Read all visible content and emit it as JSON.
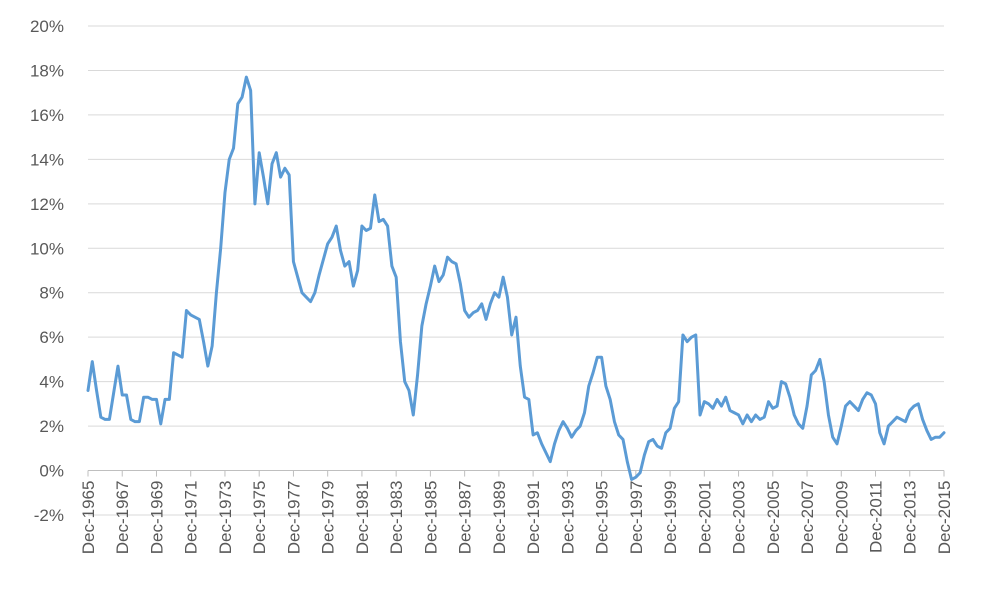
{
  "chart_data": {
    "type": "line",
    "title": "",
    "xlabel": "",
    "ylabel": "",
    "ylim": [
      -0.02,
      0.2
    ],
    "y_ticks": [
      "-2%",
      "0%",
      "2%",
      "4%",
      "6%",
      "8%",
      "10%",
      "12%",
      "14%",
      "16%",
      "18%",
      "20%"
    ],
    "y_tick_values": [
      -0.02,
      0,
      0.02,
      0.04,
      0.06,
      0.08,
      0.1,
      0.12,
      0.14,
      0.16,
      0.18,
      0.2
    ],
    "x_ticks": [
      "Dec-1965",
      "Dec-1967",
      "Dec-1969",
      "Dec-1971",
      "Dec-1973",
      "Dec-1975",
      "Dec-1977",
      "Dec-1979",
      "Dec-1981",
      "Dec-1983",
      "Dec-1985",
      "Dec-1987",
      "Dec-1989",
      "Dec-1991",
      "Dec-1993",
      "Dec-1995",
      "Dec-1997",
      "Dec-1999",
      "Dec-2001",
      "Dec-2003",
      "Dec-2005",
      "Dec-2007",
      "Dec-2009",
      "Dec-2011",
      "Dec-2013",
      "Dec-2015"
    ],
    "grid": true,
    "legend": "none",
    "color": "#5b9bd5",
    "series": [
      {
        "x": [
          "1965-12",
          "1966-03",
          "1966-06",
          "1966-09",
          "1966-12",
          "1967-03",
          "1967-06",
          "1967-09",
          "1967-12",
          "1968-03",
          "1968-06",
          "1968-09",
          "1968-12",
          "1969-03",
          "1969-06",
          "1969-09",
          "1969-12",
          "1970-03",
          "1970-06",
          "1970-09",
          "1970-12",
          "1971-03",
          "1971-06",
          "1971-09",
          "1971-12",
          "1972-03",
          "1972-06",
          "1972-09",
          "1972-12",
          "1973-03",
          "1973-06",
          "1973-09",
          "1973-12",
          "1974-03",
          "1974-06",
          "1974-09",
          "1974-12",
          "1975-03",
          "1975-06",
          "1975-09",
          "1975-12",
          "1976-03",
          "1976-06",
          "1976-09",
          "1976-12",
          "1977-03",
          "1977-06",
          "1977-09",
          "1977-12",
          "1978-03",
          "1978-06",
          "1978-09",
          "1978-12",
          "1979-03",
          "1979-06",
          "1979-09",
          "1979-12",
          "1980-03",
          "1980-06",
          "1980-09",
          "1980-12",
          "1981-03",
          "1981-06",
          "1981-09",
          "1981-12",
          "1982-03",
          "1982-06",
          "1982-09",
          "1982-12",
          "1983-03",
          "1983-06",
          "1983-09",
          "1983-12",
          "1984-03",
          "1984-06",
          "1984-09",
          "1984-12",
          "1985-03",
          "1985-06",
          "1985-09",
          "1985-12",
          "1986-03",
          "1986-06",
          "1986-09",
          "1986-12",
          "1987-03",
          "1987-06",
          "1987-09",
          "1987-12",
          "1988-03",
          "1988-06",
          "1988-09",
          "1988-12",
          "1989-03",
          "1989-06",
          "1989-09",
          "1989-12",
          "1990-03",
          "1990-06",
          "1990-09",
          "1990-12",
          "1991-03",
          "1991-06",
          "1991-09",
          "1991-12",
          "1992-03",
          "1992-06",
          "1992-09",
          "1992-12",
          "1993-03",
          "1993-06",
          "1993-09",
          "1993-12",
          "1994-03",
          "1994-06",
          "1994-09",
          "1994-12",
          "1995-03",
          "1995-06",
          "1995-09",
          "1995-12",
          "1996-03",
          "1996-06",
          "1996-09",
          "1996-12",
          "1997-03",
          "1997-06",
          "1997-09",
          "1997-12",
          "1998-03",
          "1998-06",
          "1998-09",
          "1998-12",
          "1999-03",
          "1999-06",
          "1999-09",
          "1999-12",
          "2000-03",
          "2000-06",
          "2000-09",
          "2000-12",
          "2001-03",
          "2001-06",
          "2001-09",
          "2001-12",
          "2002-03",
          "2002-06",
          "2002-09",
          "2002-12",
          "2003-03",
          "2003-06",
          "2003-09",
          "2003-12",
          "2004-03",
          "2004-06",
          "2004-09",
          "2004-12",
          "2005-03",
          "2005-06",
          "2005-09",
          "2005-12",
          "2006-03",
          "2006-06",
          "2006-09",
          "2006-12",
          "2007-03",
          "2007-06",
          "2007-09",
          "2007-12",
          "2008-03",
          "2008-06",
          "2008-09",
          "2008-12",
          "2009-03",
          "2009-06",
          "2009-09",
          "2009-12",
          "2010-03",
          "2010-06",
          "2010-09",
          "2010-12",
          "2011-03",
          "2011-06",
          "2011-09",
          "2011-12",
          "2012-03",
          "2012-06",
          "2012-09",
          "2012-12",
          "2013-03",
          "2013-06",
          "2013-09",
          "2013-12",
          "2014-03",
          "2014-06",
          "2014-09",
          "2014-12",
          "2015-03",
          "2015-06",
          "2015-09",
          "2015-12"
        ],
        "values": [
          0.036,
          0.049,
          0.036,
          0.024,
          0.023,
          0.023,
          0.035,
          0.047,
          0.034,
          0.034,
          0.023,
          0.022,
          0.022,
          0.033,
          0.033,
          0.032,
          0.032,
          0.021,
          0.032,
          0.032,
          0.053,
          0.052,
          0.051,
          0.072,
          0.07,
          0.069,
          0.068,
          0.058,
          0.047,
          0.056,
          0.08,
          0.1,
          0.125,
          0.14,
          0.145,
          0.165,
          0.168,
          0.177,
          0.171,
          0.12,
          0.143,
          0.132,
          0.12,
          0.138,
          0.143,
          0.132,
          0.136,
          0.133,
          0.094,
          0.087,
          0.08,
          0.078,
          0.076,
          0.08,
          0.088,
          0.095,
          0.102,
          0.105,
          0.11,
          0.099,
          0.092,
          0.094,
          0.083,
          0.09,
          0.11,
          0.108,
          0.109,
          0.124,
          0.112,
          0.113,
          0.11,
          0.092,
          0.087,
          0.058,
          0.04,
          0.036,
          0.025,
          0.043,
          0.065,
          0.075,
          0.083,
          0.092,
          0.085,
          0.088,
          0.096,
          0.094,
          0.093,
          0.084,
          0.072,
          0.069,
          0.071,
          0.072,
          0.075,
          0.068,
          0.075,
          0.08,
          0.078,
          0.087,
          0.078,
          0.061,
          0.069,
          0.047,
          0.033,
          0.032,
          0.016,
          0.017,
          0.012,
          0.008,
          0.004,
          0.012,
          0.018,
          0.022,
          0.019,
          0.015,
          0.018,
          0.02,
          0.026,
          0.038,
          0.044,
          0.051,
          0.051,
          0.038,
          0.032,
          0.022,
          0.016,
          0.014,
          0.004,
          -0.004,
          -0.003,
          -0.001,
          0.007,
          0.013,
          0.014,
          0.011,
          0.01,
          0.017,
          0.019,
          0.028,
          0.031,
          0.061,
          0.058,
          0.06,
          0.061,
          0.025,
          0.031,
          0.03,
          0.028,
          0.032,
          0.029,
          0.033,
          0.027,
          0.026,
          0.025,
          0.021,
          0.025,
          0.022,
          0.025,
          0.023,
          0.024,
          0.031,
          0.028,
          0.029,
          0.04,
          0.039,
          0.033,
          0.025,
          0.021,
          0.019,
          0.029,
          0.043,
          0.045,
          0.05,
          0.04,
          0.025,
          0.015,
          0.012,
          0.02,
          0.029,
          0.031,
          0.029,
          0.027,
          0.032,
          0.035,
          0.034,
          0.03,
          0.017,
          0.012,
          0.02,
          0.022,
          0.024,
          0.023,
          0.022,
          0.027,
          0.029,
          0.03,
          0.023,
          0.018,
          0.014,
          0.015,
          0.015,
          0.017
        ]
      }
    ]
  }
}
